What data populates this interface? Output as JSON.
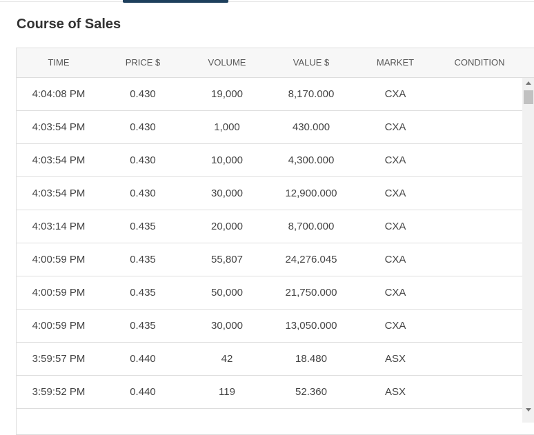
{
  "header": {
    "title": "Course of Sales"
  },
  "table": {
    "columns": [
      "TIME",
      "PRICE $",
      "VOLUME",
      "VALUE $",
      "MARKET",
      "CONDITION"
    ],
    "rows": [
      [
        "4:04:08 PM",
        "0.430",
        "19,000",
        "8,170.000",
        "CXA"
      ],
      [
        "4:03:54 PM",
        "0.430",
        "1,000",
        "430.000",
        "CXA"
      ],
      [
        "4:03:54 PM",
        "0.430",
        "10,000",
        "4,300.000",
        "CXA"
      ],
      [
        "4:03:54 PM",
        "0.430",
        "30,000",
        "12,900.000",
        "CXA"
      ],
      [
        "4:03:14 PM",
        "0.435",
        "20,000",
        "8,700.000",
        "CXA"
      ],
      [
        "4:00:59 PM",
        "0.435",
        "55,807",
        "24,276.045",
        "CXA"
      ],
      [
        "4:00:59 PM",
        "0.435",
        "50,000",
        "21,750.000",
        "CXA"
      ],
      [
        "4:00:59 PM",
        "0.435",
        "30,000",
        "13,050.000",
        "CXA"
      ],
      [
        "3:59:57 PM",
        "0.440",
        "42",
        "18.480",
        "ASX"
      ],
      [
        "3:59:52 PM",
        "0.440",
        "119",
        "52.360",
        "ASX"
      ]
    ]
  }
}
